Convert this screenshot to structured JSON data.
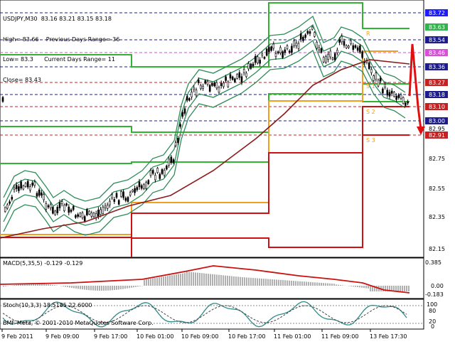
{
  "header": {
    "line1": "USDJPY,M30  83.16 83.21 83.15 83.18",
    "line2": "High= 83.66    Previous Days Range= 36",
    "line3": "Low= 83.3      Current Days Range= 11",
    "line4": "Close= 83.43"
  },
  "price_scale": {
    "labels": [
      "83.72",
      "83.63",
      "83.54",
      "83.46",
      "83.36",
      "83.27",
      "83.18",
      "83.10",
      "83.00",
      "82.95",
      "82.91",
      "82.75",
      "82.55",
      "82.35",
      "82.15"
    ],
    "boxes": [
      {
        "text": "83.72",
        "bg": "#1c1cff",
        "fg": "#ffffff"
      },
      {
        "text": "83.63",
        "bg": "#2fb34a",
        "fg": "#ffffff"
      },
      {
        "text": "83.54",
        "bg": "#1c1c8c",
        "fg": "#ffffff"
      },
      {
        "text": "83.46",
        "bg": "#d84fd8",
        "fg": "#ffffff"
      },
      {
        "text": "83.36",
        "bg": "#1c1c8c",
        "fg": "#ffffff"
      },
      {
        "text": "83.27",
        "bg": "#c82020",
        "fg": "#ffffff"
      },
      {
        "text": "83.18",
        "bg": "#1c1c8c",
        "fg": "#ffffff"
      },
      {
        "text": "83.10",
        "bg": "#c82020",
        "fg": "#ffffff"
      },
      {
        "text": "83.00",
        "bg": "#1c1c8c",
        "fg": "#ffffff"
      },
      {
        "text": "82.91",
        "bg": "#c82020",
        "fg": "#ffffff"
      }
    ]
  },
  "pivot_labels": {
    "r": "R",
    "s1": "S 1",
    "s2": "S 2",
    "s3": "S 3"
  },
  "macd": {
    "label": "MACD(5,35,5) -0.129 -0.129",
    "scale": [
      "0.385",
      "0.00",
      "-0.183"
    ]
  },
  "stoch": {
    "label": "Stoch(10,3,3) 18.5185 22.6000",
    "scale": [
      "100",
      "80",
      "20",
      "0"
    ],
    "copyright": "BMF-Meta, © 2001-2010 MetaQuotes Software Corp."
  },
  "time_axis": [
    "9 Feb 2011",
    "9 Feb 09:00",
    "9 Feb 17:00",
    "10 Feb 01:00",
    "10 Feb 09:00",
    "10 Feb 17:00",
    "11 Feb 01:00",
    "11 Feb 09:00",
    "13 Feb 17:30"
  ],
  "colors": {
    "candle": "#000000",
    "ma_slow": "#8b1a1a",
    "bands": "#2e8b57",
    "pivot_green": "#32b432",
    "pivot_orange": "#f0a020",
    "pivot_red": "#d01010",
    "grid_blue": "#1c1c8c",
    "magenta": "#d84fd8",
    "macd_hist": "#b0b0b0",
    "macd_signal": "#cc1010",
    "stoch_main": "#2e8b8b"
  }
}
